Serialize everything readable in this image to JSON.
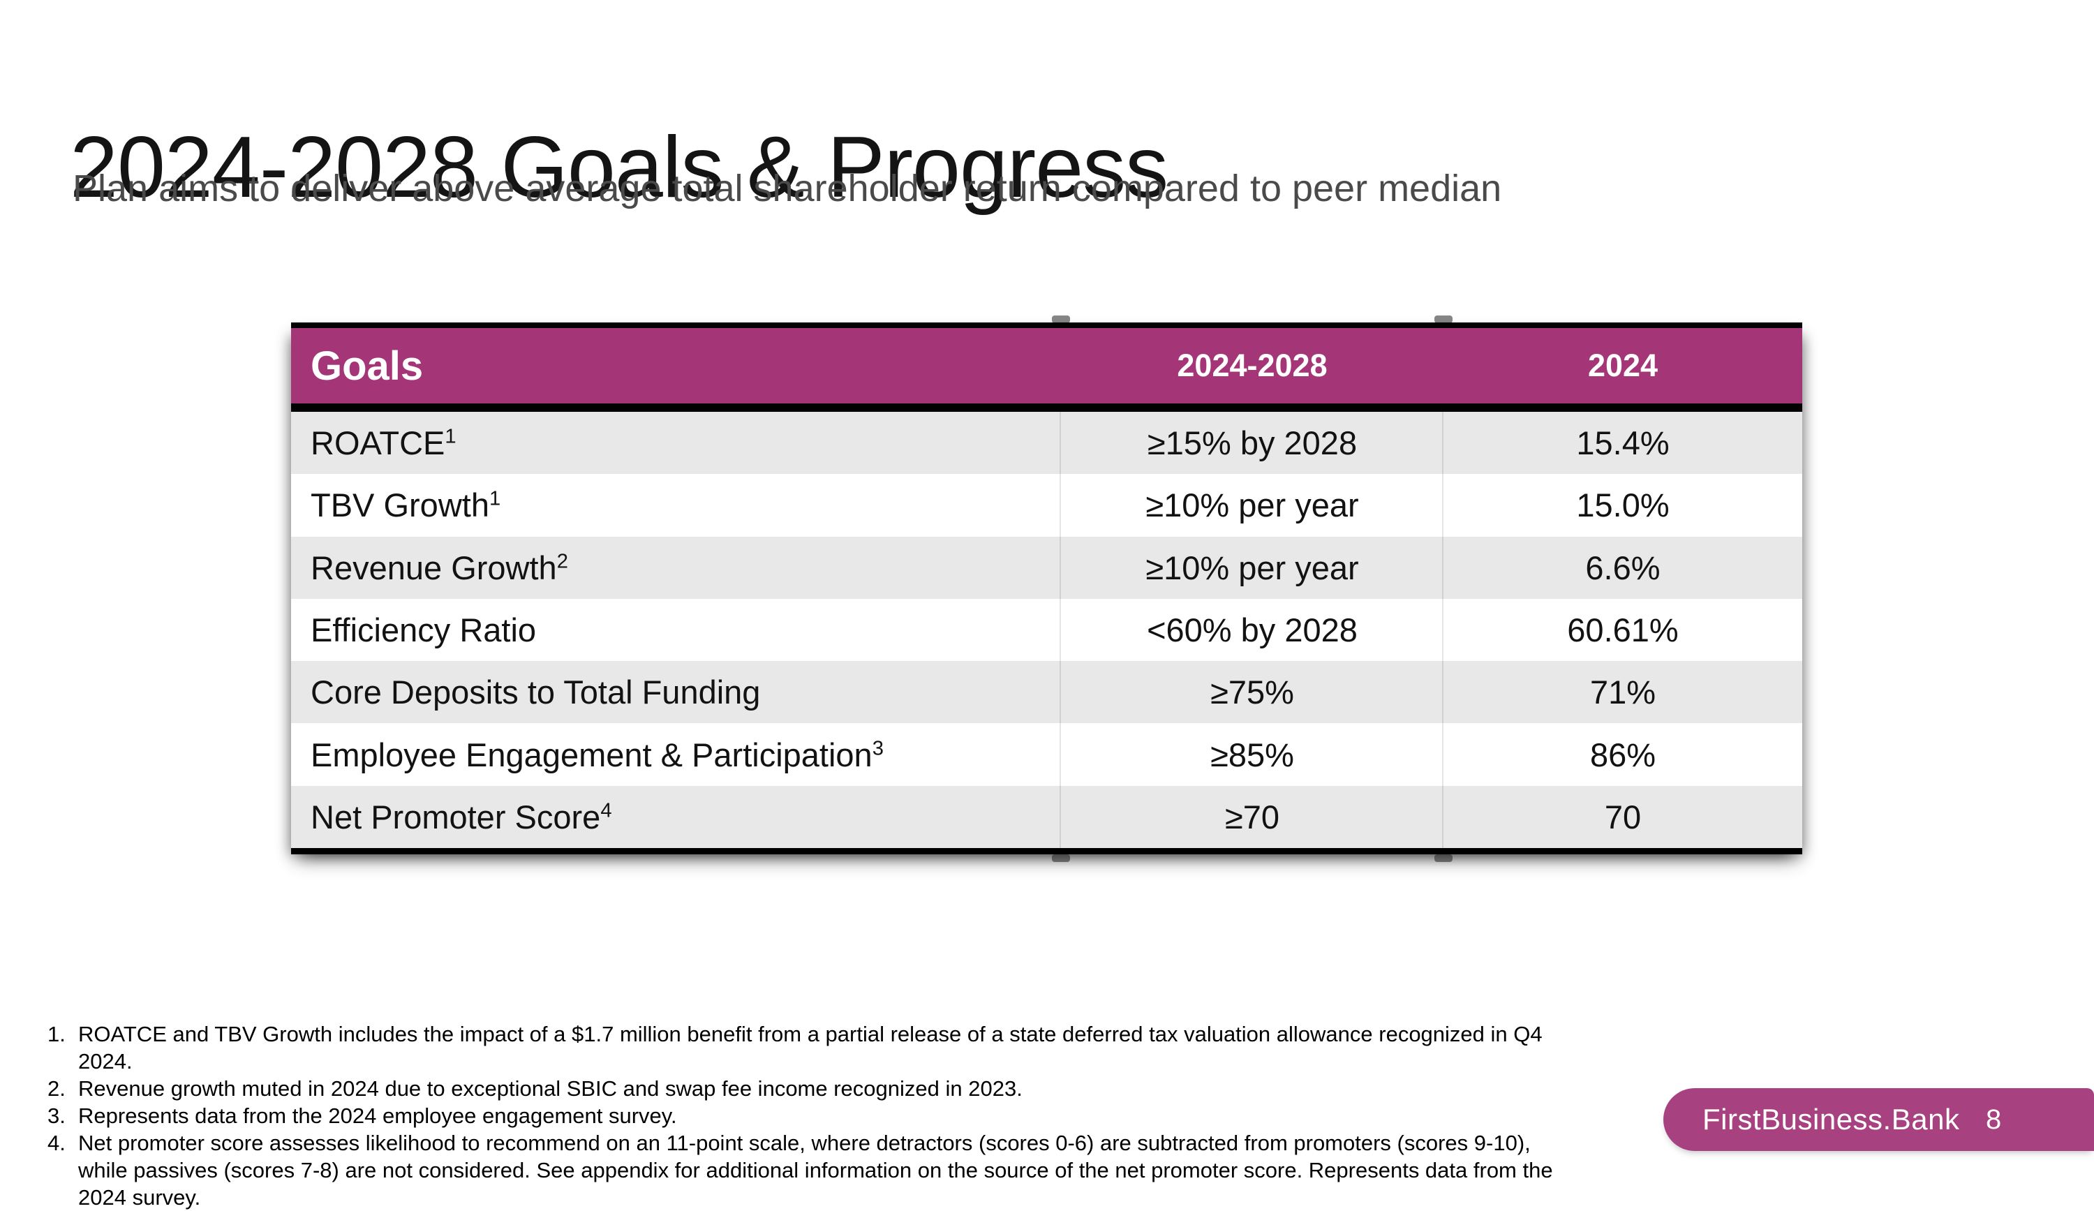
{
  "slide": {
    "title": "2024-2028 Goals & Progress",
    "subtitle": "Plan aims to deliver above average total shareholder return compared to peer median",
    "brand": "FirstBusiness.Bank",
    "page_number": "8"
  },
  "table": {
    "columns": {
      "goals": "Goals",
      "target_period": "2024-2028",
      "current_year": "2024"
    },
    "rows": [
      {
        "goal": "ROATCE",
        "sup": "1",
        "target": "≥15% by 2028",
        "actual": "15.4%"
      },
      {
        "goal": "TBV Growth",
        "sup": "1",
        "target": "≥10% per year",
        "actual": "15.0%"
      },
      {
        "goal": "Revenue Growth",
        "sup": "2",
        "target": "≥10% per year",
        "actual": "6.6%"
      },
      {
        "goal": "Efficiency Ratio",
        "sup": "",
        "target": "<60% by 2028",
        "actual": "60.61%"
      },
      {
        "goal": "Core Deposits to Total Funding",
        "sup": "",
        "target": "≥75%",
        "actual": "71%"
      },
      {
        "goal": "Employee Engagement & Participation",
        "sup": "3",
        "target": "≥85%",
        "actual": "86%"
      },
      {
        "goal": "Net Promoter Score",
        "sup": "4",
        "target": "≥70",
        "actual": "70"
      }
    ]
  },
  "footnotes": [
    {
      "number": "1.",
      "text": "ROATCE and TBV Growth includes the impact of a $1.7 million benefit from a partial release of a state deferred tax valuation allowance recognized in Q4 2024."
    },
    {
      "number": "2.",
      "text": "Revenue growth muted in 2024 due to exceptional SBIC and swap fee income recognized in 2023."
    },
    {
      "number": "3.",
      "text": "Represents data from the 2024 employee engagement survey."
    },
    {
      "number": "4.",
      "text": "Net promoter score assesses likelihood to recommend on an 11-point scale, where detractors (scores 0-6) are subtracted from promoters (scores 9-10), while passives (scores 7-8) are not considered. See appendix for additional information on the source of the net promoter score. Represents data from the 2024 survey."
    }
  ],
  "colors": {
    "header_magenta": "#A43577",
    "badge_magenta": "#A8417F",
    "row_gray": "#E9E8E8",
    "subtitle_gray": "#4A4A4A",
    "border_black": "#000000"
  }
}
